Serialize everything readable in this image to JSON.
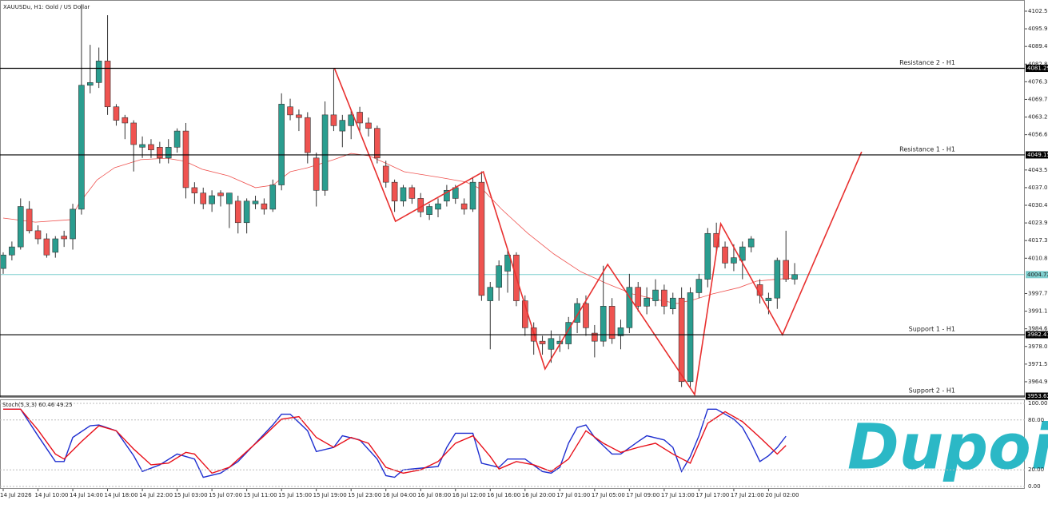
{
  "chart_data": {
    "type": "candlestick",
    "title": "XAUUSDu, H1:  Gold / US Dollar",
    "up_color": "#2a9d8f",
    "down_color": "#ef5350",
    "ohlc": [
      [
        4007,
        4013,
        4005,
        4012
      ],
      [
        4012,
        4017,
        4010,
        4015
      ],
      [
        4015,
        4033,
        4014,
        4030
      ],
      [
        4029,
        4032,
        4020,
        4021
      ],
      [
        4021,
        4023,
        4016,
        4018
      ],
      [
        4018,
        4020,
        4011,
        4012
      ],
      [
        4013,
        4019,
        4011,
        4018
      ],
      [
        4019,
        4021,
        4015,
        4018
      ],
      [
        4018,
        4031,
        4014,
        4029
      ],
      [
        4029,
        4105,
        4027,
        4075
      ],
      [
        4075,
        4090,
        4072,
        4076
      ],
      [
        4076,
        4089,
        4074,
        4084
      ],
      [
        4084,
        4101,
        4064,
        4067
      ],
      [
        4067,
        4068,
        4060,
        4062
      ],
      [
        4063,
        4064,
        4055,
        4061
      ],
      [
        4061,
        4062,
        4043,
        4053
      ],
      [
        4052,
        4056,
        4048,
        4053
      ],
      [
        4053,
        4055,
        4048,
        4051
      ],
      [
        4052,
        4054,
        4046,
        4048
      ],
      [
        4048,
        4055,
        4046,
        4052
      ],
      [
        4052,
        4059,
        4050,
        4058
      ],
      [
        4058,
        4061,
        4033,
        4037
      ],
      [
        4037,
        4039,
        4031,
        4035
      ],
      [
        4035,
        4037,
        4029,
        4031
      ],
      [
        4031,
        4036,
        4028,
        4034
      ],
      [
        4035,
        4036,
        4030,
        4034
      ],
      [
        4031,
        4035,
        4022,
        4035
      ],
      [
        4032,
        4034,
        4020,
        4024
      ],
      [
        4024,
        4033,
        4020,
        4032
      ],
      [
        4031,
        4034,
        4029,
        4032
      ],
      [
        4031,
        4033,
        4027,
        4029
      ],
      [
        4029,
        4040,
        4028,
        4038
      ],
      [
        4038,
        4072,
        4036,
        4068
      ],
      [
        4067,
        4070,
        4062,
        4064
      ],
      [
        4064,
        4066,
        4058,
        4063
      ],
      [
        4063,
        4065,
        4046,
        4050
      ],
      [
        4048,
        4050,
        4030,
        4036
      ],
      [
        4036,
        4069,
        4034,
        4064
      ],
      [
        4064,
        4081,
        4058,
        4060
      ],
      [
        4058,
        4064,
        4052,
        4062
      ],
      [
        4060,
        4066,
        4055,
        4064
      ],
      [
        4065,
        4067,
        4058,
        4061
      ],
      [
        4061,
        4063,
        4056,
        4059
      ],
      [
        4059,
        4060,
        4046,
        4048
      ],
      [
        4045,
        4047,
        4037,
        4039
      ],
      [
        4039,
        4040,
        4028,
        4032
      ],
      [
        4032,
        4038,
        4030,
        4037
      ],
      [
        4037,
        4038,
        4031,
        4033
      ],
      [
        4033,
        4035,
        4026,
        4028
      ],
      [
        4027,
        4031,
        4025,
        4030
      ],
      [
        4029,
        4033,
        4026,
        4031
      ],
      [
        4032,
        4038,
        4030,
        4036
      ],
      [
        4033,
        4038,
        4031,
        4037
      ],
      [
        4031,
        4033,
        4027,
        4029
      ],
      [
        4029,
        4041,
        4028,
        4039
      ],
      [
        4039,
        4043,
        3995,
        3997
      ],
      [
        3995,
        4002,
        3977,
        4000
      ],
      [
        4000,
        4010,
        3995,
        4008
      ],
      [
        4006,
        4014,
        3998,
        4012
      ],
      [
        4012,
        4013,
        3993,
        3995
      ],
      [
        3995,
        3997,
        3982,
        3985
      ],
      [
        3985,
        3987,
        3975,
        3980
      ],
      [
        3980,
        3982,
        3975,
        3979
      ],
      [
        3977,
        3984,
        3972,
        3981
      ],
      [
        3979,
        3982,
        3976,
        3980
      ],
      [
        3979,
        3989,
        3977,
        3987
      ],
      [
        3987,
        3996,
        3983,
        3994
      ],
      [
        3994,
        3997,
        3982,
        3985
      ],
      [
        3983,
        3986,
        3974,
        3980
      ],
      [
        3980,
        4008,
        3978,
        3993
      ],
      [
        3993,
        3996,
        3979,
        3981
      ],
      [
        3982,
        3988,
        3977,
        3985
      ],
      [
        3985,
        4005,
        3983,
        4000
      ],
      [
        4000,
        4002,
        3991,
        3993
      ],
      [
        3993,
        4000,
        3990,
        3996
      ],
      [
        3995,
        4003,
        3993,
        3999
      ],
      [
        3999,
        4001,
        3990,
        3993
      ],
      [
        3992,
        3998,
        3990,
        3996
      ],
      [
        3996,
        4000,
        3963,
        3965
      ],
      [
        3965,
        4000,
        3963,
        3998
      ],
      [
        3998,
        4005,
        3996,
        4003
      ],
      [
        4003,
        4022,
        4000,
        4020
      ],
      [
        4020,
        4024,
        4013,
        4015
      ],
      [
        4015,
        4017,
        4007,
        4009
      ],
      [
        4009,
        4016,
        4006,
        4011
      ],
      [
        4010,
        4017,
        4003,
        4015
      ],
      [
        4015,
        4019,
        4013,
        4018
      ],
      [
        4001,
        4003,
        3994,
        3997
      ],
      [
        3995,
        3998,
        3990,
        3996
      ],
      [
        3996,
        4011,
        3992,
        4010
      ],
      [
        4010,
        4021,
        4002,
        4003
      ],
      [
        4003,
        4009,
        4001,
        4004.72
      ]
    ],
    "ylim": [
      3959.3,
      4105.46
    ],
    "yticks": [
      {
        "value": 4102.5,
        "label": "4102.50"
      },
      4095.95,
      {
        "value": 4089.4,
        "label": "4089.40"
      },
      4082.85,
      {
        "value": 4076.3,
        "label": "4076.30"
      },
      4069.75,
      {
        "value": 4063.2,
        "label": "4063.20"
      },
      4056.65,
      4043.55,
      {
        "value": 4037,
        "label": "4037.00"
      },
      4030.45,
      {
        "value": 4023.9,
        "label": "4023.90"
      },
      4017.35,
      {
        "value": 4010.8,
        "label": "4010.80"
      },
      {
        "value": 3997.7,
        "label": "3997.70"
      },
      3991.15,
      {
        "value": 3984.6,
        "label": "3984.60"
      },
      3978.05,
      {
        "value": 3971.5,
        "label": "3971.50"
      },
      3964.95
    ],
    "time_ticks": {
      "x": [
        0,
        4,
        8,
        12,
        16,
        20,
        24,
        28,
        32,
        36,
        40,
        44,
        48,
        52,
        56,
        60,
        64,
        68,
        72,
        76,
        80,
        84,
        88
      ],
      "labels": [
        "14 Jul 2026",
        "14 Jul 10:00",
        "14 Jul 14:00",
        "14 Jul 18:00",
        "14 Jul 22:00",
        "15 Jul 03:00",
        "15 Jul 07:00",
        "15 Jul 11:00",
        "15 Jul 15:00",
        "15 Jul 19:00",
        "15 Jul 23:00",
        "16 Jul 04:00",
        "16 Jul 08:00",
        "16 Jul 12:00",
        "16 Jul 16:00",
        "16 Jul 20:00",
        "17 Jul 01:00",
        "17 Jul 05:00",
        "17 Jul 09:00",
        "17 Jul 13:00",
        "17 Jul 17:00",
        "17 Jul 21:00",
        "20 Jul 02:00"
      ]
    },
    "ma": {
      "color": "#ef5350",
      "x": [
        0,
        3.7,
        7.7,
        8.7,
        10.8,
        12.8,
        15.8,
        18.8,
        20.9,
        22.9,
        25.9,
        29,
        31,
        33,
        35,
        38,
        40,
        42.1,
        44.1,
        46.1,
        50.2,
        53.2,
        55.2,
        57.3,
        60.3,
        63.3,
        66.4,
        69.4,
        72.4,
        75.5,
        77.5,
        79.5,
        81.5,
        84.6,
        86.6,
        88.6,
        91
      ],
      "values": [
        4025.7,
        4024.2,
        4025.1,
        4031,
        4039.9,
        4044.4,
        4047.4,
        4047.9,
        4046.8,
        4043.8,
        4041.4,
        4037,
        4037.9,
        4042.9,
        4044.4,
        4047.4,
        4049.7,
        4048.8,
        4045.9,
        4042.9,
        4040.8,
        4039.1,
        4036.1,
        4029,
        4020.1,
        4012.4,
        4005.8,
        4001.4,
        3997.5,
        3995.2,
        3994,
        3995.5,
        3997.5,
        3999.9,
        4002.3,
        4002.9,
        4003.5
      ]
    },
    "zigzag": {
      "color": "#e8302f",
      "x": [
        38.1,
        45.1,
        55.2,
        62.3,
        69.5,
        79.5,
        82.5,
        89.6,
        98.7
      ],
      "values": [
        4081.2,
        4024.5,
        4042.9,
        3969.7,
        4008.5,
        3960.2,
        4023.6,
        3982.4,
        4050.3
      ]
    },
    "levels": [
      {
        "name": "Resistance 2 - H1",
        "value": 4081.29
      },
      {
        "name": "Resistance 1 - H1",
        "value": 4049.15
      },
      {
        "name": "Support 1 - H1",
        "value": 3982.41
      },
      {
        "name": "Support 2 - H1",
        "value": 3953.62
      }
    ],
    "current_price": {
      "value": 4004.72,
      "color": "#7fcfcf"
    },
    "stoch": {
      "label": "Stoch(5,3,3) 60.46 49.25",
      "ylim": [
        0,
        100
      ],
      "yticks": [
        {
          "value": 100,
          "label": "100.00"
        },
        {
          "value": 80,
          "label": "80.00"
        },
        {
          "value": 20,
          "label": "20.00"
        },
        {
          "value": 0,
          "label": "0.00"
        }
      ],
      "series": [
        {
          "color": "#1f2fd0",
          "x": [
            0,
            2,
            4,
            6,
            7,
            8,
            10,
            11,
            13,
            15,
            16,
            18,
            20,
            22,
            23,
            25,
            27,
            29,
            31,
            32,
            33,
            35,
            36,
            38,
            39,
            41,
            43,
            44,
            45,
            46,
            48,
            50,
            51,
            52,
            54,
            55,
            57,
            58,
            60,
            62,
            63,
            64,
            65,
            66,
            67,
            68,
            70,
            71,
            73,
            74,
            76,
            77,
            78,
            79,
            80,
            81,
            82,
            84,
            85,
            86,
            87,
            88,
            89,
            90
          ],
          "values": [
            93,
            93,
            61,
            30,
            30,
            59,
            73,
            74,
            67,
            37,
            18,
            26,
            39,
            33,
            11,
            16,
            30,
            52,
            74,
            87,
            87,
            67,
            42,
            47,
            61,
            56,
            33,
            13,
            11,
            20,
            22,
            24,
            47,
            64,
            64,
            28,
            23,
            33,
            33,
            18,
            16,
            23,
            52,
            71,
            74,
            59,
            39,
            39,
            54,
            61,
            56,
            47,
            18,
            36,
            61,
            93,
            93,
            81,
            71,
            52,
            30,
            37,
            47,
            60.46
          ]
        },
        {
          "color": "#e8101a",
          "x": [
            0,
            2,
            4,
            6,
            7,
            9,
            11,
            13,
            15,
            17,
            19,
            21,
            22,
            24,
            26,
            28,
            30,
            32,
            34,
            36,
            38,
            40,
            42,
            44,
            46,
            48,
            50,
            52,
            54,
            56,
            57,
            59,
            61,
            63,
            65,
            67,
            69,
            71,
            73,
            75,
            77,
            79,
            81,
            83,
            85,
            87,
            89,
            90
          ],
          "values": [
            93,
            93,
            68,
            39,
            33,
            54,
            73,
            67,
            45,
            26,
            28,
            41,
            39,
            16,
            23,
            42,
            61,
            81,
            84,
            59,
            47,
            59,
            52,
            23,
            16,
            20,
            30,
            52,
            61,
            36,
            21,
            30,
            26,
            18,
            33,
            67,
            52,
            41,
            47,
            52,
            39,
            28,
            76,
            90,
            78,
            59,
            39,
            49.25
          ]
        }
      ]
    },
    "watermark": "Dupoin"
  }
}
